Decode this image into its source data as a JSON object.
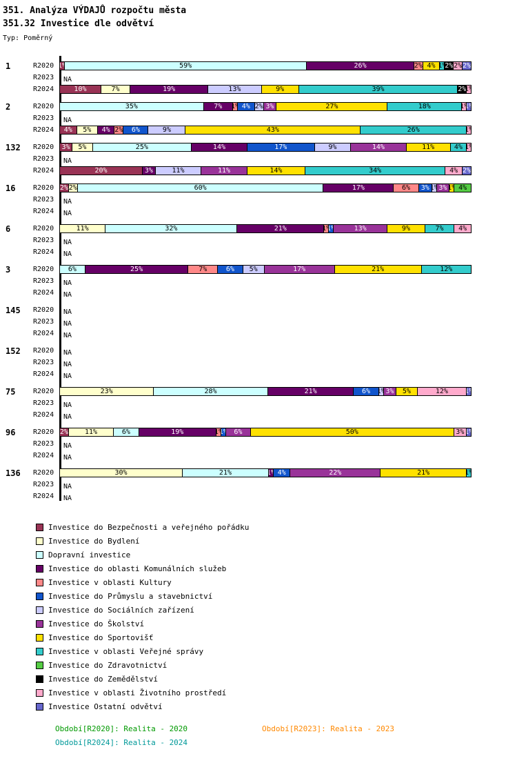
{
  "title": "351. Analýza VÝDAJŮ rozpočtu města",
  "subtitle": "351.32 Investice dle odvětví",
  "type_label": "Typ: Poměrný",
  "na_label": "NA",
  "chart_data": {
    "type": "bar",
    "stacked": true,
    "orientation": "horizontal",
    "value_unit": "%",
    "x_range": [
      0,
      100
    ],
    "legend_position": "bottom",
    "periods": [
      "R2020",
      "R2023",
      "R2024"
    ],
    "categories": [
      {
        "name": "Investice do Bezpečnosti a veřejného pořádku",
        "color": "#993355"
      },
      {
        "name": "Investice do Bydlení",
        "color": "#FFFFCC"
      },
      {
        "name": "Dopravní investice",
        "color": "#CCFFFF"
      },
      {
        "name": "Investice do oblasti Komunálních služeb",
        "color": "#660066"
      },
      {
        "name": "Investice v oblasti Kultury",
        "color": "#FF8888"
      },
      {
        "name": "Investice do Průmyslu a stavebnictví",
        "color": "#1155CC"
      },
      {
        "name": "Investice do Sociálních zařízení",
        "color": "#CCCCFF"
      },
      {
        "name": "Investice do Školství",
        "color": "#993399"
      },
      {
        "name": "Investice do Sportovišť",
        "color": "#FFE100"
      },
      {
        "name": "Investice v oblasti Veřejné správy",
        "color": "#33CCCC"
      },
      {
        "name": "Investice do Zdravotnictví",
        "color": "#55CC44"
      },
      {
        "name": "Investice do Zemědělství",
        "color": "#000000"
      },
      {
        "name": "Investice v oblasti Životního prostředí",
        "color": "#FFAACC"
      },
      {
        "name": "Investice Ostatní odvětví",
        "color": "#6666CC"
      }
    ],
    "groups": [
      {
        "id": "1",
        "rows": [
          {
            "period": "R2020",
            "segments": [
              [
                0,
                1
              ],
              [
                2,
                59
              ],
              [
                3,
                26
              ],
              [
                4,
                2
              ],
              [
                8,
                4
              ],
              [
                9,
                1
              ],
              [
                11,
                2
              ],
              [
                12,
                2
              ],
              [
                13,
                2
              ]
            ]
          },
          {
            "period": "R2023",
            "segments": null
          },
          {
            "period": "R2024",
            "segments": [
              [
                0,
                10
              ],
              [
                1,
                7
              ],
              [
                3,
                19
              ],
              [
                6,
                13
              ],
              [
                8,
                9
              ],
              [
                9,
                39
              ],
              [
                11,
                2
              ],
              [
                12,
                1
              ]
            ]
          }
        ]
      },
      {
        "id": "2",
        "rows": [
          {
            "period": "R2020",
            "segments": [
              [
                2,
                35
              ],
              [
                3,
                7
              ],
              [
                4,
                1
              ],
              [
                5,
                4
              ],
              [
                6,
                2
              ],
              [
                7,
                3
              ],
              [
                8,
                27
              ],
              [
                9,
                18
              ],
              [
                12,
                1
              ],
              [
                13,
                1
              ]
            ]
          },
          {
            "period": "R2023",
            "segments": null
          },
          {
            "period": "R2024",
            "segments": [
              [
                0,
                4
              ],
              [
                1,
                5
              ],
              [
                3,
                4
              ],
              [
                4,
                2
              ],
              [
                5,
                6
              ],
              [
                6,
                9
              ],
              [
                8,
                43
              ],
              [
                9,
                26
              ],
              [
                12,
                1
              ]
            ]
          }
        ]
      },
      {
        "id": "132",
        "rows": [
          {
            "period": "R2020",
            "segments": [
              [
                0,
                3
              ],
              [
                1,
                5
              ],
              [
                2,
                25
              ],
              [
                3,
                14
              ],
              [
                5,
                17
              ],
              [
                6,
                9
              ],
              [
                7,
                14
              ],
              [
                8,
                11
              ],
              [
                9,
                4
              ],
              [
                12,
                1
              ]
            ]
          },
          {
            "period": "R2023",
            "segments": null
          },
          {
            "period": "R2024",
            "segments": [
              [
                0,
                20
              ],
              [
                3,
                3
              ],
              [
                6,
                11
              ],
              [
                7,
                11
              ],
              [
                8,
                14
              ],
              [
                9,
                34
              ],
              [
                12,
                4
              ],
              [
                13,
                2
              ]
            ]
          }
        ]
      },
      {
        "id": "16",
        "rows": [
          {
            "period": "R2020",
            "segments": [
              [
                0,
                2
              ],
              [
                1,
                2
              ],
              [
                2,
                60
              ],
              [
                3,
                17
              ],
              [
                4,
                6
              ],
              [
                5,
                3
              ],
              [
                6,
                1
              ],
              [
                7,
                3
              ],
              [
                8,
                1
              ],
              [
                10,
                4
              ]
            ]
          },
          {
            "period": "R2023",
            "segments": null
          },
          {
            "period": "R2024",
            "segments": null
          }
        ]
      },
      {
        "id": "6",
        "rows": [
          {
            "period": "R2020",
            "segments": [
              [
                1,
                11
              ],
              [
                2,
                32
              ],
              [
                3,
                21
              ],
              [
                4,
                1
              ],
              [
                5,
                1
              ],
              [
                7,
                13
              ],
              [
                8,
                9
              ],
              [
                9,
                7
              ],
              [
                12,
                4
              ]
            ]
          },
          {
            "period": "R2023",
            "segments": null
          },
          {
            "period": "R2024",
            "segments": null
          }
        ]
      },
      {
        "id": "3",
        "rows": [
          {
            "period": "R2020",
            "segments": [
              [
                2,
                6
              ],
              [
                3,
                25
              ],
              [
                4,
                7
              ],
              [
                5,
                6
              ],
              [
                6,
                5
              ],
              [
                7,
                17
              ],
              [
                8,
                21
              ],
              [
                9,
                12
              ]
            ]
          },
          {
            "period": "R2023",
            "segments": null
          },
          {
            "period": "R2024",
            "segments": null
          }
        ]
      },
      {
        "id": "145",
        "rows": [
          {
            "period": "R2020",
            "segments": null
          },
          {
            "period": "R2023",
            "segments": null
          },
          {
            "period": "R2024",
            "segments": null
          }
        ]
      },
      {
        "id": "152",
        "rows": [
          {
            "period": "R2020",
            "segments": null
          },
          {
            "period": "R2023",
            "segments": null
          },
          {
            "period": "R2024",
            "segments": null
          }
        ]
      },
      {
        "id": "75",
        "rows": [
          {
            "period": "R2020",
            "segments": [
              [
                1,
                23
              ],
              [
                2,
                28
              ],
              [
                3,
                21
              ],
              [
                5,
                6
              ],
              [
                6,
                1
              ],
              [
                7,
                3
              ],
              [
                8,
                5
              ],
              [
                12,
                12
              ],
              [
                13,
                1
              ]
            ]
          },
          {
            "period": "R2023",
            "segments": null
          },
          {
            "period": "R2024",
            "segments": null
          }
        ]
      },
      {
        "id": "96",
        "rows": [
          {
            "period": "R2020",
            "segments": [
              [
                0,
                2
              ],
              [
                1,
                11
              ],
              [
                2,
                6
              ],
              [
                3,
                19
              ],
              [
                4,
                1
              ],
              [
                5,
                1
              ],
              [
                7,
                6
              ],
              [
                8,
                50
              ],
              [
                12,
                3
              ],
              [
                13,
                1
              ]
            ]
          },
          {
            "period": "R2023",
            "segments": null
          },
          {
            "period": "R2024",
            "segments": null
          }
        ]
      },
      {
        "id": "136",
        "rows": [
          {
            "period": "R2020",
            "segments": [
              [
                1,
                30
              ],
              [
                2,
                21
              ],
              [
                3,
                1
              ],
              [
                5,
                4
              ],
              [
                7,
                22
              ],
              [
                8,
                21
              ],
              [
                9,
                1
              ]
            ]
          },
          {
            "period": "R2023",
            "segments": null
          },
          {
            "period": "R2024",
            "segments": null
          }
        ]
      }
    ]
  },
  "footer": {
    "lines": [
      [
        {
          "text": "Období[R2020]: Realita - 2020",
          "color": "#009900"
        },
        {
          "text": "Období[R2023]: Realita - 2023",
          "color": "#FF8800"
        }
      ],
      [
        {
          "text": "Období[R2024]: Realita - 2024",
          "color": "#009999"
        }
      ]
    ]
  }
}
